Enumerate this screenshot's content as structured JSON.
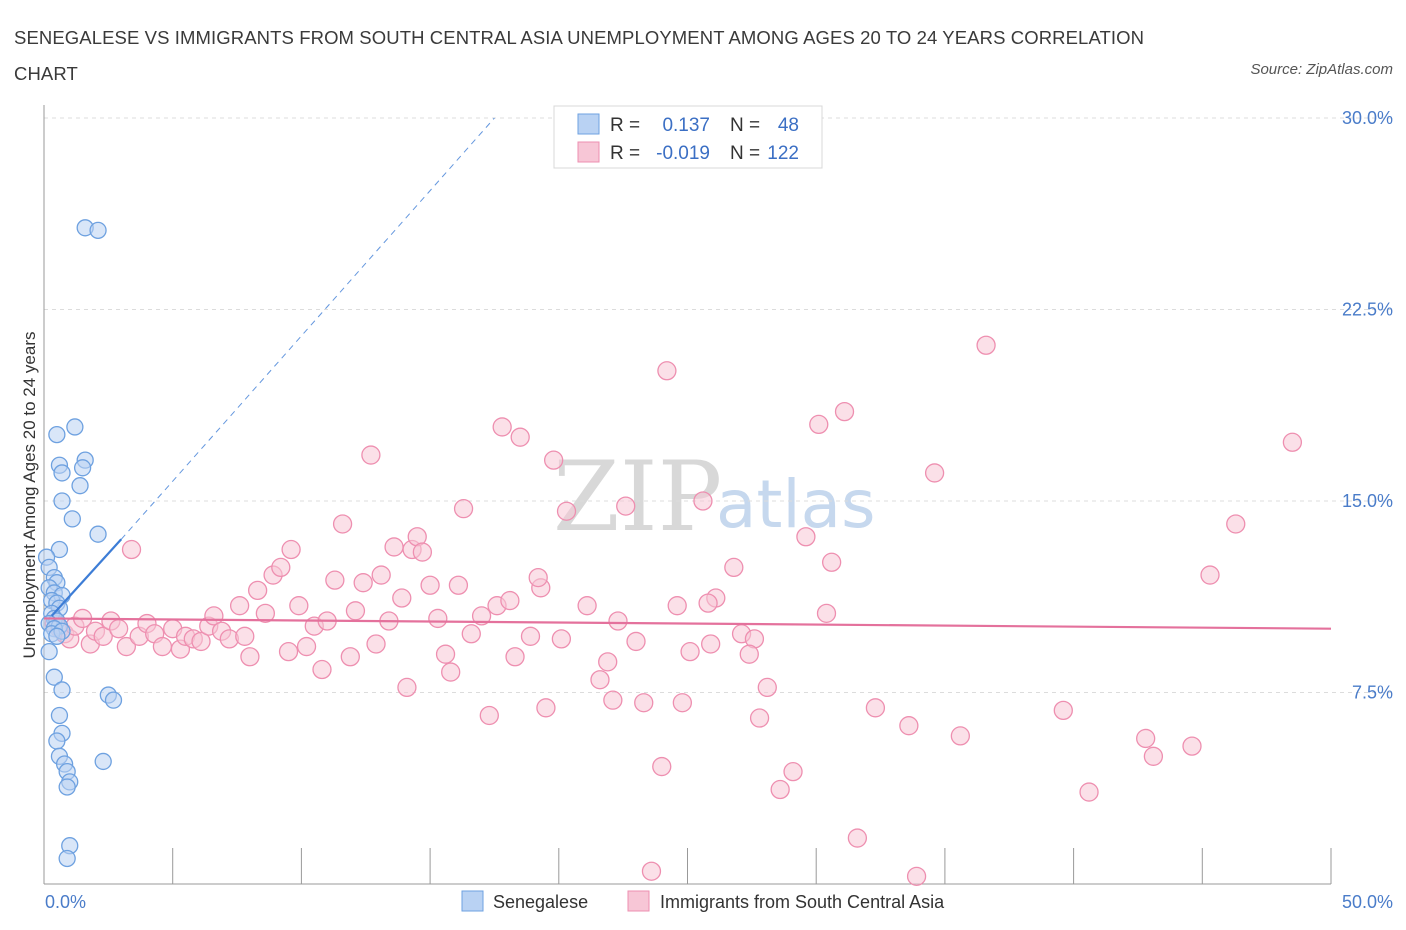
{
  "title": "SENEGALESE VS IMMIGRANTS FROM SOUTH CENTRAL ASIA UNEMPLOYMENT AMONG AGES 20 TO 24 YEARS CORRELATION CHART",
  "source": "Source: ZipAtlas.com",
  "watermark": {
    "zip": "ZIP",
    "atlas": "atlas"
  },
  "colors": {
    "blue": "#6ea1e0",
    "blue_fill": "#b9d2f3",
    "blue_line": "#3d7dd6",
    "pink": "#ee8fb0",
    "pink_fill": "#f7c6d6",
    "pink_line": "#e4719c",
    "axis_text": "#4a7cc9"
  },
  "legend_top": {
    "rows": [
      {
        "r_label": "R =",
        "r_value": "0.137",
        "n_label": "N =",
        "n_value": "48"
      },
      {
        "r_label": "R =",
        "r_value": "-0.019",
        "n_label": "N =",
        "n_value": "122"
      }
    ]
  },
  "chart_data": {
    "type": "scatter",
    "title": "SENEGALESE VS IMMIGRANTS FROM SOUTH CENTRAL ASIA UNEMPLOYMENT AMONG AGES 20 TO 24 YEARS CORRELATION CHART",
    "xlabel": "",
    "ylabel": "Unemployment Among Ages 20 to 24 years",
    "xlim": [
      0,
      50
    ],
    "ylim": [
      0,
      30
    ],
    "x_tick_labels": [
      "0.0%",
      "50.0%"
    ],
    "y_ticks": [
      7.5,
      15.0,
      22.5,
      30.0
    ],
    "y_tick_labels": [
      "7.5%",
      "15.0%",
      "22.5%",
      "30.0%"
    ],
    "grid": true,
    "legend_placement": "bottom-center",
    "series": [
      {
        "name": "Senegalese",
        "R": 0.137,
        "N": 48,
        "trend": {
          "x": [
            0.3,
            3.0
          ],
          "y": [
            10.5,
            13.5
          ],
          "dashed_extension_to": [
            17.5,
            30.0
          ]
        },
        "points": [
          [
            1.6,
            25.7
          ],
          [
            2.1,
            25.6
          ],
          [
            0.5,
            17.6
          ],
          [
            1.2,
            17.9
          ],
          [
            0.6,
            16.4
          ],
          [
            0.7,
            16.1
          ],
          [
            1.6,
            16.6
          ],
          [
            1.5,
            16.3
          ],
          [
            1.4,
            15.6
          ],
          [
            0.7,
            15.0
          ],
          [
            1.1,
            14.3
          ],
          [
            2.1,
            13.7
          ],
          [
            0.6,
            13.1
          ],
          [
            0.1,
            12.8
          ],
          [
            0.2,
            12.4
          ],
          [
            0.4,
            12.0
          ],
          [
            0.5,
            11.8
          ],
          [
            0.2,
            11.6
          ],
          [
            0.4,
            11.4
          ],
          [
            0.7,
            11.3
          ],
          [
            0.3,
            11.1
          ],
          [
            0.5,
            11.0
          ],
          [
            0.6,
            10.8
          ],
          [
            0.3,
            10.6
          ],
          [
            0.4,
            10.4
          ],
          [
            0.5,
            10.3
          ],
          [
            0.2,
            10.2
          ],
          [
            0.6,
            10.1
          ],
          [
            0.4,
            10.0
          ],
          [
            0.3,
            9.8
          ],
          [
            0.7,
            9.9
          ],
          [
            0.5,
            9.7
          ],
          [
            0.2,
            9.1
          ],
          [
            0.4,
            8.1
          ],
          [
            0.7,
            7.6
          ],
          [
            2.5,
            7.4
          ],
          [
            2.7,
            7.2
          ],
          [
            0.6,
            6.6
          ],
          [
            0.7,
            5.9
          ],
          [
            0.5,
            5.6
          ],
          [
            0.6,
            5.0
          ],
          [
            0.8,
            4.7
          ],
          [
            2.3,
            4.8
          ],
          [
            0.9,
            4.4
          ],
          [
            1.0,
            4.0
          ],
          [
            0.9,
            3.8
          ],
          [
            1.0,
            1.5
          ],
          [
            0.9,
            1.0
          ]
        ]
      },
      {
        "name": "Immigrants from South Central Asia",
        "R": -0.019,
        "N": 122,
        "trend": {
          "x": [
            0,
            50
          ],
          "y": [
            10.4,
            10.0
          ]
        },
        "points": [
          [
            0.4,
            10.2
          ],
          [
            0.6,
            10.0
          ],
          [
            0.8,
            9.8
          ],
          [
            1.0,
            9.6
          ],
          [
            1.2,
            10.1
          ],
          [
            1.5,
            10.4
          ],
          [
            1.8,
            9.4
          ],
          [
            2.0,
            9.9
          ],
          [
            2.3,
            9.7
          ],
          [
            2.6,
            10.3
          ],
          [
            2.9,
            10.0
          ],
          [
            3.2,
            9.3
          ],
          [
            3.4,
            13.1
          ],
          [
            3.7,
            9.7
          ],
          [
            4.0,
            10.2
          ],
          [
            4.3,
            9.8
          ],
          [
            4.6,
            9.3
          ],
          [
            5.0,
            10.0
          ],
          [
            5.3,
            9.2
          ],
          [
            5.5,
            9.7
          ],
          [
            5.8,
            9.6
          ],
          [
            6.1,
            9.5
          ],
          [
            6.4,
            10.1
          ],
          [
            6.6,
            10.5
          ],
          [
            6.9,
            9.9
          ],
          [
            7.2,
            9.6
          ],
          [
            7.6,
            10.9
          ],
          [
            7.8,
            9.7
          ],
          [
            8.0,
            8.9
          ],
          [
            8.3,
            11.5
          ],
          [
            8.6,
            10.6
          ],
          [
            8.9,
            12.1
          ],
          [
            9.2,
            12.4
          ],
          [
            9.5,
            9.1
          ],
          [
            9.6,
            13.1
          ],
          [
            9.9,
            10.9
          ],
          [
            10.2,
            9.3
          ],
          [
            10.5,
            10.1
          ],
          [
            10.8,
            8.4
          ],
          [
            11.0,
            10.3
          ],
          [
            11.3,
            11.9
          ],
          [
            11.6,
            14.1
          ],
          [
            11.9,
            8.9
          ],
          [
            12.1,
            10.7
          ],
          [
            12.4,
            11.8
          ],
          [
            12.7,
            16.8
          ],
          [
            12.9,
            9.4
          ],
          [
            13.1,
            12.1
          ],
          [
            13.4,
            10.3
          ],
          [
            13.6,
            13.2
          ],
          [
            13.9,
            11.2
          ],
          [
            14.1,
            7.7
          ],
          [
            14.3,
            13.1
          ],
          [
            14.5,
            13.6
          ],
          [
            14.7,
            13.0
          ],
          [
            15.0,
            11.7
          ],
          [
            15.3,
            10.4
          ],
          [
            15.6,
            9.0
          ],
          [
            15.8,
            8.3
          ],
          [
            16.1,
            11.7
          ],
          [
            16.3,
            14.7
          ],
          [
            16.6,
            9.8
          ],
          [
            17.0,
            10.5
          ],
          [
            17.3,
            6.6
          ],
          [
            17.6,
            10.9
          ],
          [
            17.8,
            17.9
          ],
          [
            18.1,
            11.1
          ],
          [
            18.3,
            8.9
          ],
          [
            18.5,
            17.5
          ],
          [
            18.9,
            9.7
          ],
          [
            19.3,
            11.6
          ],
          [
            19.5,
            6.9
          ],
          [
            19.8,
            16.6
          ],
          [
            20.1,
            9.6
          ],
          [
            20.3,
            14.6
          ],
          [
            21.1,
            10.9
          ],
          [
            21.6,
            8.0
          ],
          [
            21.9,
            8.7
          ],
          [
            22.1,
            7.2
          ],
          [
            22.3,
            10.3
          ],
          [
            22.6,
            14.8
          ],
          [
            23.0,
            9.5
          ],
          [
            23.3,
            7.1
          ],
          [
            24.0,
            4.6
          ],
          [
            24.2,
            20.1
          ],
          [
            24.6,
            10.9
          ],
          [
            24.8,
            7.1
          ],
          [
            25.1,
            9.1
          ],
          [
            25.6,
            15.0
          ],
          [
            25.9,
            9.4
          ],
          [
            26.1,
            11.2
          ],
          [
            26.8,
            12.4
          ],
          [
            27.1,
            9.8
          ],
          [
            27.6,
            9.6
          ],
          [
            27.8,
            6.5
          ],
          [
            28.1,
            7.7
          ],
          [
            28.6,
            3.7
          ],
          [
            29.1,
            4.4
          ],
          [
            29.6,
            13.6
          ],
          [
            30.1,
            18.0
          ],
          [
            30.6,
            12.6
          ],
          [
            31.1,
            18.5
          ],
          [
            31.6,
            1.8
          ],
          [
            32.3,
            6.9
          ],
          [
            33.6,
            6.2
          ],
          [
            34.6,
            16.1
          ],
          [
            35.6,
            5.8
          ],
          [
            36.6,
            21.1
          ],
          [
            39.6,
            6.8
          ],
          [
            40.6,
            3.6
          ],
          [
            42.8,
            5.7
          ],
          [
            43.1,
            5.0
          ],
          [
            44.6,
            5.4
          ],
          [
            45.3,
            12.1
          ],
          [
            46.3,
            14.1
          ],
          [
            48.5,
            17.3
          ],
          [
            23.6,
            0.5
          ],
          [
            33.9,
            0.3
          ],
          [
            25.8,
            11.0
          ],
          [
            19.2,
            12.0
          ],
          [
            30.4,
            10.6
          ],
          [
            27.4,
            9.0
          ]
        ]
      }
    ]
  }
}
